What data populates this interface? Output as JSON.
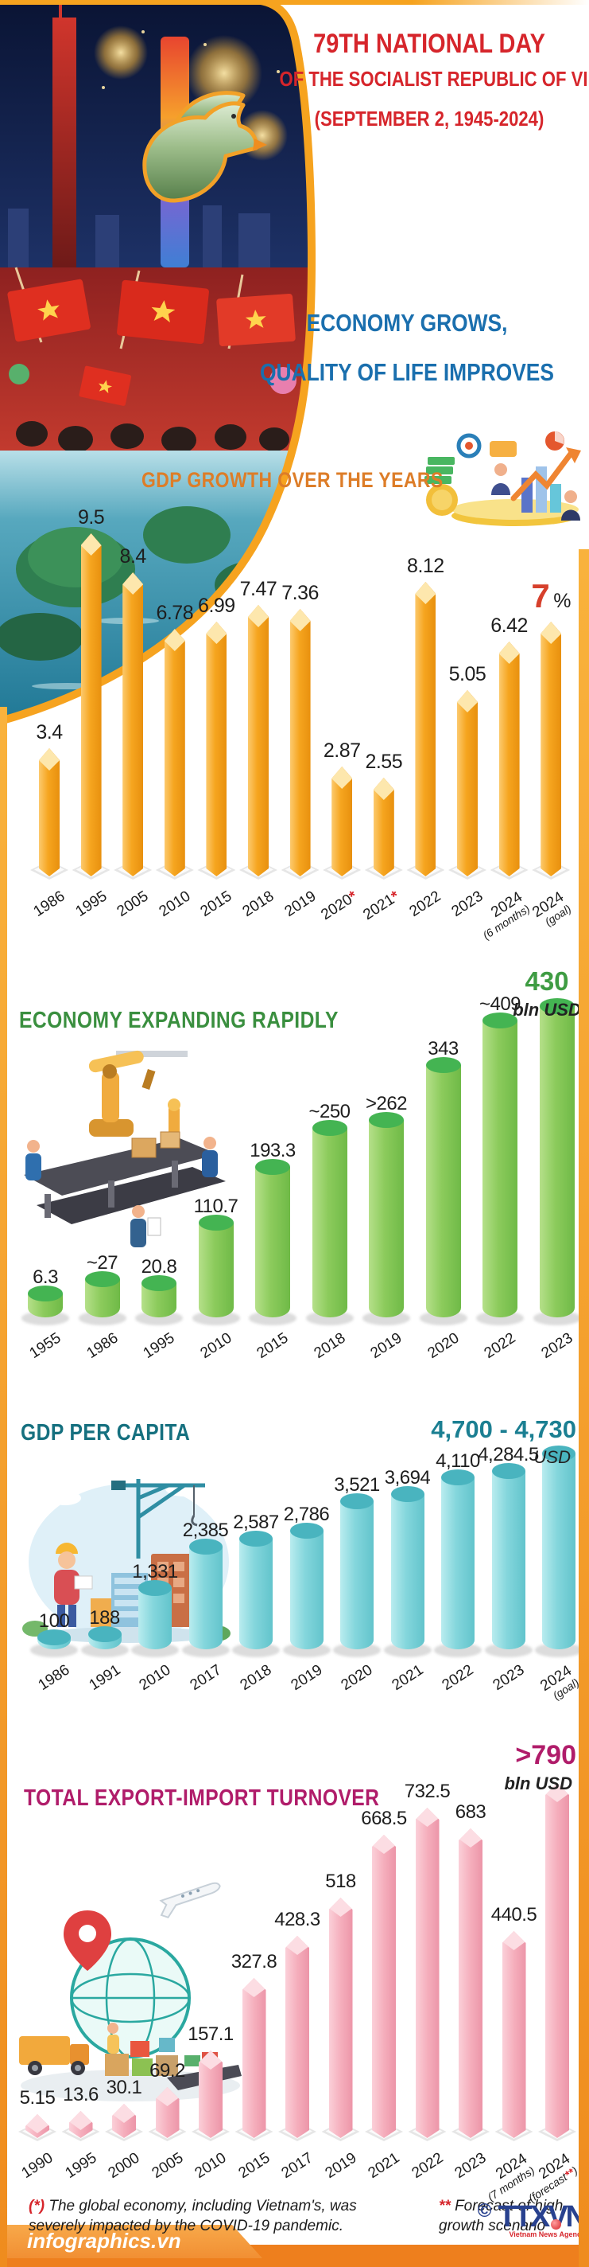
{
  "header": {
    "line1": "79TH NATIONAL DAY",
    "line2": "OF THE SOCIALIST REPUBLIC OF VIETNAM",
    "line3": "(SEPTEMBER 2, 1945-2024)",
    "tagline1": "ECONOMY GROWS,",
    "tagline2": "QUALITY OF LIFE IMPROVES"
  },
  "colors": {
    "header_red": "#d6252b",
    "tagline_blue": "#1a6fae",
    "section1_orange": "#dd7d28",
    "section2_green": "#3a8f3f",
    "section3_teal": "#15707f",
    "section4_magenta": "#b01c6a",
    "bar_orange": "#f6a51f",
    "bar_green": "#86cb58",
    "bar_cyan": "#7fd3d9",
    "bar_pink": "#f4a8b8",
    "goal_red": "#d6402c"
  },
  "chart_data": [
    {
      "type": "bar",
      "title": "GDP GROWTH OVER THE YEARS",
      "unit": "%",
      "categories": [
        "1986",
        "1995",
        "2005",
        "2010",
        "2015",
        "2018",
        "2019",
        "2020*",
        "2021*",
        "2022",
        "2023",
        "2024 (6 months)",
        "2024 (goal)"
      ],
      "values": [
        3.4,
        9.5,
        8.4,
        6.78,
        6.99,
        7.47,
        7.36,
        2.87,
        2.55,
        8.12,
        5.05,
        6.42,
        7
      ],
      "value_labels": [
        "3.4",
        "9.5",
        "8.4",
        "6.78",
        "6.99",
        "7.47",
        "7.36",
        "2.87",
        "2.55",
        "8.12",
        "5.05",
        "6.42",
        "7|%"
      ],
      "ylim": [
        0,
        9.5
      ],
      "grid": false,
      "legend": "none"
    },
    {
      "type": "bar",
      "title": "ECONOMY EXPANDING RAPIDLY",
      "unit": "bln USD",
      "categories": [
        "1955",
        "1986",
        "1995",
        "2010",
        "2015",
        "2018",
        "2019",
        "2020",
        "2022",
        "2023"
      ],
      "values": [
        6.3,
        27,
        20.8,
        110.7,
        193.3,
        250,
        262,
        343,
        409,
        430
      ],
      "value_labels": [
        "6.3",
        "~27",
        "20.8",
        "110.7",
        "193.3",
        "~250",
        ">262",
        "343",
        "~409",
        ""
      ],
      "callout": {
        "value": "430",
        "unit": "bln USD"
      },
      "ylim": [
        0,
        430
      ],
      "grid": false,
      "legend": "none"
    },
    {
      "type": "bar",
      "title": "GDP PER CAPITA",
      "unit": "USD",
      "categories": [
        "1986",
        "1991",
        "2010",
        "2017",
        "2018",
        "2019",
        "2020",
        "2021",
        "2022",
        "2023",
        "2024 (goal)"
      ],
      "values": [
        100,
        188,
        1331,
        2385,
        2587,
        2786,
        3521,
        3694,
        4110,
        4284.5,
        4715
      ],
      "value_labels": [
        "100",
        "188",
        "1,331",
        "2,385",
        "2,587",
        "2,786",
        "3,521",
        "3,694",
        "4,110",
        "4,284.5",
        ""
      ],
      "callout": {
        "value": "4,700 - 4,730",
        "unit": "USD"
      },
      "ylim": [
        0,
        4730
      ],
      "grid": false,
      "legend": "none"
    },
    {
      "type": "bar",
      "title": "TOTAL EXPORT-IMPORT TURNOVER",
      "unit": "bln USD",
      "categories": [
        "1990",
        "1995",
        "2000",
        "2005",
        "2010",
        "2015",
        "2017",
        "2019",
        "2021",
        "2022",
        "2023",
        "2024 (7 months)",
        "2024 (forecast**)"
      ],
      "values": [
        5.15,
        13.6,
        30.1,
        69.2,
        157.1,
        327.8,
        428.3,
        518,
        668.5,
        732.5,
        683,
        440.5,
        790
      ],
      "value_labels": [
        "5.15",
        "13.6",
        "30.1",
        "69.2",
        "157.1",
        "327.8",
        "428.3",
        "518",
        "668.5",
        "732.5",
        "683",
        "440.5",
        ""
      ],
      "callout": {
        "value": ">790",
        "unit": "bln USD"
      },
      "ylim": [
        0,
        790
      ],
      "grid": false,
      "legend": "none"
    }
  ],
  "footnotes": [
    {
      "mark": "(*)",
      "text": " The global economy, including Vietnam's, was severely impacted by the COVID-19 pandemic."
    },
    {
      "mark": "**",
      "text": " Forecast of high-growth scenario"
    }
  ],
  "footer": {
    "brand": "infographics.vn",
    "copyright": "©",
    "agency": "TTXVN",
    "agency_sub": "Vietnam News Agency"
  }
}
